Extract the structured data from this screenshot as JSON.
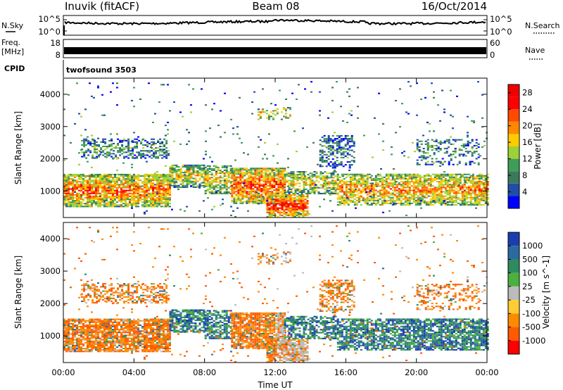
{
  "header": {
    "title": "Inuvik (fitACF)",
    "beam": "Beam 08",
    "date": "16/Oct/2014"
  },
  "top_panels": {
    "nsky_label": "N.Sky",
    "nsearch_label": "N.Search",
    "noise_ticks": [
      "10^5",
      "10^0"
    ],
    "freq_label": "Freq.",
    "freq_unit": "[MHz]",
    "freq_ticks": [
      "18",
      "8"
    ],
    "nave_label": "Nave",
    "nave_ticks": [
      "60",
      "0"
    ],
    "cpid_label": "CPID",
    "cpid_value": "twofsound 3503"
  },
  "chart_data": [
    {
      "type": "heatmap",
      "name": "power",
      "ylabel": "Slant Range [km]",
      "y_ticks": [
        "4000",
        "3000",
        "2000",
        "1000"
      ],
      "ylim": [
        180,
        4500
      ],
      "xlim": [
        0,
        24
      ],
      "x_ticks": [
        "00:00",
        "04:00",
        "08:00",
        "12:00",
        "16:00",
        "20:00",
        "00:00"
      ],
      "colorbar": {
        "label": "Power [dB]",
        "ticks": [
          "28",
          "24",
          "20",
          "16",
          "12",
          "8",
          "4"
        ],
        "range": [
          0,
          30
        ]
      }
    },
    {
      "type": "heatmap",
      "name": "velocity",
      "ylabel": "Slant Range [km]",
      "xlabel": "Time UT",
      "y_ticks": [
        "4000",
        "3000",
        "2000",
        "1000"
      ],
      "ylim": [
        180,
        4500
      ],
      "xlim": [
        0,
        24
      ],
      "x_ticks": [
        "00:00",
        "04:00",
        "08:00",
        "12:00",
        "16:00",
        "20:00",
        "00:00"
      ],
      "colorbar": {
        "label": "Velocity [m s^-1]",
        "ticks": [
          "1000",
          "500",
          "100",
          "25",
          "-25",
          "-100",
          "-500",
          "-1000"
        ]
      }
    }
  ]
}
